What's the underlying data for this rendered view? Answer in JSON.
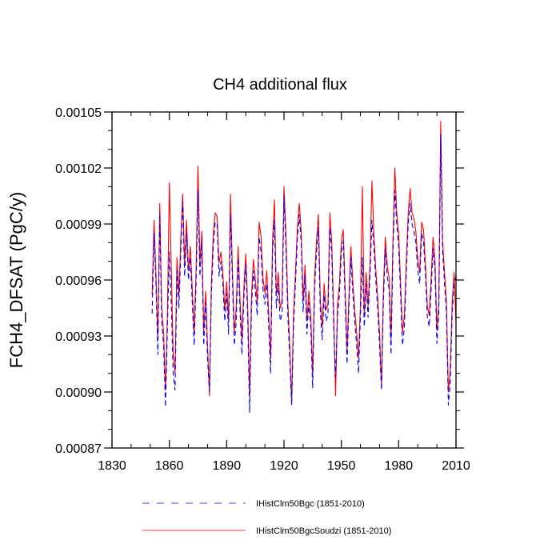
{
  "chart_data": {
    "type": "line",
    "title": "CH4 additional flux",
    "xlabel": "",
    "ylabel": "FCH4_DFSAT  (PgC/y)",
    "xlim": [
      1830,
      2010
    ],
    "ylim": [
      0.00087,
      0.00105
    ],
    "xticks": [
      1830,
      1860,
      1890,
      1920,
      1950,
      1980,
      2010
    ],
    "xtick_labels": [
      "1830",
      "1860",
      "1890",
      "1920",
      "1950",
      "1980",
      "2010"
    ],
    "yticks": [
      0.00087,
      0.0009,
      0.00093,
      0.00096,
      0.00099,
      0.00102,
      0.00105
    ],
    "ytick_labels": [
      "0.00087",
      "0.00090",
      "0.00093",
      "0.00096",
      "0.00099",
      "0.00102",
      "0.00105"
    ],
    "grid": false,
    "legend_position": "bottom",
    "x": [
      1851,
      1852,
      1853,
      1854,
      1855,
      1856,
      1857,
      1858,
      1859,
      1860,
      1861,
      1862,
      1863,
      1864,
      1865,
      1866,
      1867,
      1868,
      1869,
      1870,
      1871,
      1872,
      1873,
      1874,
      1875,
      1876,
      1877,
      1878,
      1879,
      1880,
      1881,
      1882,
      1883,
      1884,
      1885,
      1886,
      1887,
      1888,
      1889,
      1890,
      1891,
      1892,
      1893,
      1894,
      1895,
      1896,
      1897,
      1898,
      1899,
      1900,
      1901,
      1902,
      1903,
      1904,
      1905,
      1906,
      1907,
      1908,
      1909,
      1910,
      1911,
      1912,
      1913,
      1914,
      1915,
      1916,
      1917,
      1918,
      1919,
      1920,
      1921,
      1922,
      1923,
      1924,
      1925,
      1926,
      1927,
      1928,
      1929,
      1930,
      1931,
      1932,
      1933,
      1934,
      1935,
      1936,
      1937,
      1938,
      1939,
      1940,
      1941,
      1942,
      1943,
      1944,
      1945,
      1946,
      1947,
      1948,
      1949,
      1950,
      1951,
      1952,
      1953,
      1954,
      1955,
      1956,
      1957,
      1958,
      1959,
      1960,
      1961,
      1962,
      1963,
      1964,
      1965,
      1966,
      1967,
      1968,
      1969,
      1970,
      1971,
      1972,
      1973,
      1974,
      1975,
      1976,
      1977,
      1978,
      1979,
      1980,
      1981,
      1982,
      1983,
      1984,
      1985,
      1986,
      1987,
      1988,
      1989,
      1990,
      1991,
      1992,
      1993,
      1994,
      1995,
      1996,
      1997,
      1998,
      1999,
      2000,
      2001,
      2002,
      2003,
      2004,
      2005,
      2006,
      2007,
      2008,
      2009,
      2010
    ],
    "series": [
      {
        "name": "IHistClm50Bgc (1851-2010)",
        "color": "#0000ff",
        "style": "dashed",
        "values": [
          0.000942,
          0.000985,
          0.000958,
          0.00092,
          0.000995,
          0.000938,
          0.000925,
          0.000892,
          0.000935,
          0.000975,
          0.000948,
          0.00091,
          0.000901,
          0.000965,
          0.000945,
          0.000975,
          0.001002,
          0.000962,
          0.000985,
          0.00096,
          0.000972,
          0.000948,
          0.000925,
          0.000958,
          0.001008,
          0.000962,
          0.00098,
          0.000925,
          0.000948,
          0.000918,
          0.0009,
          0.000952,
          0.000978,
          0.000991,
          0.00099,
          0.000962,
          0.00097,
          0.000958,
          0.000938,
          0.000953,
          0.000931,
          0.000995,
          0.00096,
          0.000925,
          0.000938,
          0.000972,
          0.000943,
          0.00092,
          0.00095,
          0.000968,
          0.00094,
          0.000889,
          0.000945,
          0.000965,
          0.000954,
          0.000941,
          0.000983,
          0.000975,
          0.000955,
          0.000947,
          0.000958,
          0.000935,
          0.00091,
          0.000975,
          0.000992,
          0.000945,
          0.000958,
          0.000938,
          0.000942,
          0.001005,
          0.000978,
          0.000941,
          0.000918,
          0.000893,
          0.000935,
          0.000958,
          0.000982,
          0.000995,
          0.00098,
          0.000943,
          0.000962,
          0.000931,
          0.000948,
          0.000935,
          0.000902,
          0.000955,
          0.000975,
          0.000988,
          0.000943,
          0.000928,
          0.000952,
          0.000938,
          0.000941,
          0.000988,
          0.000974,
          0.000935,
          0.000908,
          0.000941,
          0.000952,
          0.000975,
          0.000981,
          0.000948,
          0.000915,
          0.000946,
          0.000972,
          0.000953,
          0.000938,
          0.000925,
          0.00091,
          0.000941,
          0.000972,
          0.000935,
          0.000958,
          0.00094,
          0.000962,
          0.000992,
          0.000978,
          0.00096,
          0.000945,
          0.000925,
          0.000901,
          0.000948,
          0.000977,
          0.000962,
          0.000955,
          0.00092,
          0.000975,
          0.001008,
          0.00099,
          0.000978,
          0.000952,
          0.000925,
          0.000935,
          0.000964,
          0.00099,
          0.001001,
          0.00099,
          0.000986,
          0.00098,
          0.000965,
          0.000958,
          0.000985,
          0.000981,
          0.000963,
          0.00094,
          0.000935,
          0.000955,
          0.000977,
          0.000965,
          0.000926,
          0.000942,
          0.001038,
          0.000975,
          0.000958,
          0.000942,
          0.000893,
          0.000905,
          0.000942,
          0.000958,
          0.000962
        ]
      },
      {
        "name": "IHistClm50BgcSoudzi (1851-2010)",
        "color": "#ff0000",
        "style": "solid",
        "values": [
          0.000952,
          0.000992,
          0.000963,
          0.000928,
          0.001001,
          0.000945,
          0.000932,
          0.000901,
          0.000942,
          0.001012,
          0.000968,
          0.000921,
          0.00091,
          0.000972,
          0.000952,
          0.000982,
          0.001006,
          0.000969,
          0.000992,
          0.000965,
          0.000978,
          0.000955,
          0.000932,
          0.000965,
          0.001021,
          0.000969,
          0.000986,
          0.000932,
          0.000954,
          0.000925,
          0.000898,
          0.000958,
          0.000985,
          0.000996,
          0.000994,
          0.000969,
          0.000975,
          0.000964,
          0.000944,
          0.000959,
          0.000938,
          0.001006,
          0.000966,
          0.000932,
          0.000945,
          0.000978,
          0.000949,
          0.000928,
          0.000956,
          0.000974,
          0.000946,
          0.000898,
          0.000952,
          0.000971,
          0.00096,
          0.000948,
          0.000991,
          0.000983,
          0.000961,
          0.000953,
          0.000965,
          0.000941,
          0.000918,
          0.000981,
          0.001003,
          0.000952,
          0.000964,
          0.000945,
          0.000949,
          0.00101,
          0.000985,
          0.000948,
          0.000925,
          0.000894,
          0.000942,
          0.000964,
          0.000988,
          0.001001,
          0.000986,
          0.000949,
          0.000968,
          0.000938,
          0.000954,
          0.000941,
          0.000909,
          0.000961,
          0.000981,
          0.000995,
          0.000949,
          0.000935,
          0.000958,
          0.000944,
          0.000947,
          0.000996,
          0.00098,
          0.000941,
          0.000898,
          0.000947,
          0.000958,
          0.000981,
          0.000987,
          0.000955,
          0.000922,
          0.000952,
          0.000978,
          0.000959,
          0.000944,
          0.000932,
          0.000918,
          0.000947,
          0.00101,
          0.000941,
          0.000964,
          0.000946,
          0.000968,
          0.001013,
          0.000985,
          0.000966,
          0.000951,
          0.000932,
          0.000903,
          0.000954,
          0.000983,
          0.000968,
          0.000961,
          0.000928,
          0.000981,
          0.00102,
          0.000996,
          0.000985,
          0.000958,
          0.000932,
          0.000941,
          0.00097,
          0.000996,
          0.001009,
          0.000996,
          0.000993,
          0.000986,
          0.000971,
          0.000964,
          0.000991,
          0.000987,
          0.000969,
          0.000946,
          0.000941,
          0.000961,
          0.000983,
          0.000971,
          0.000933,
          0.000948,
          0.001045,
          0.000981,
          0.000964,
          0.000948,
          0.0009,
          0.000912,
          0.000948,
          0.000964,
          0.000937
        ]
      }
    ]
  }
}
